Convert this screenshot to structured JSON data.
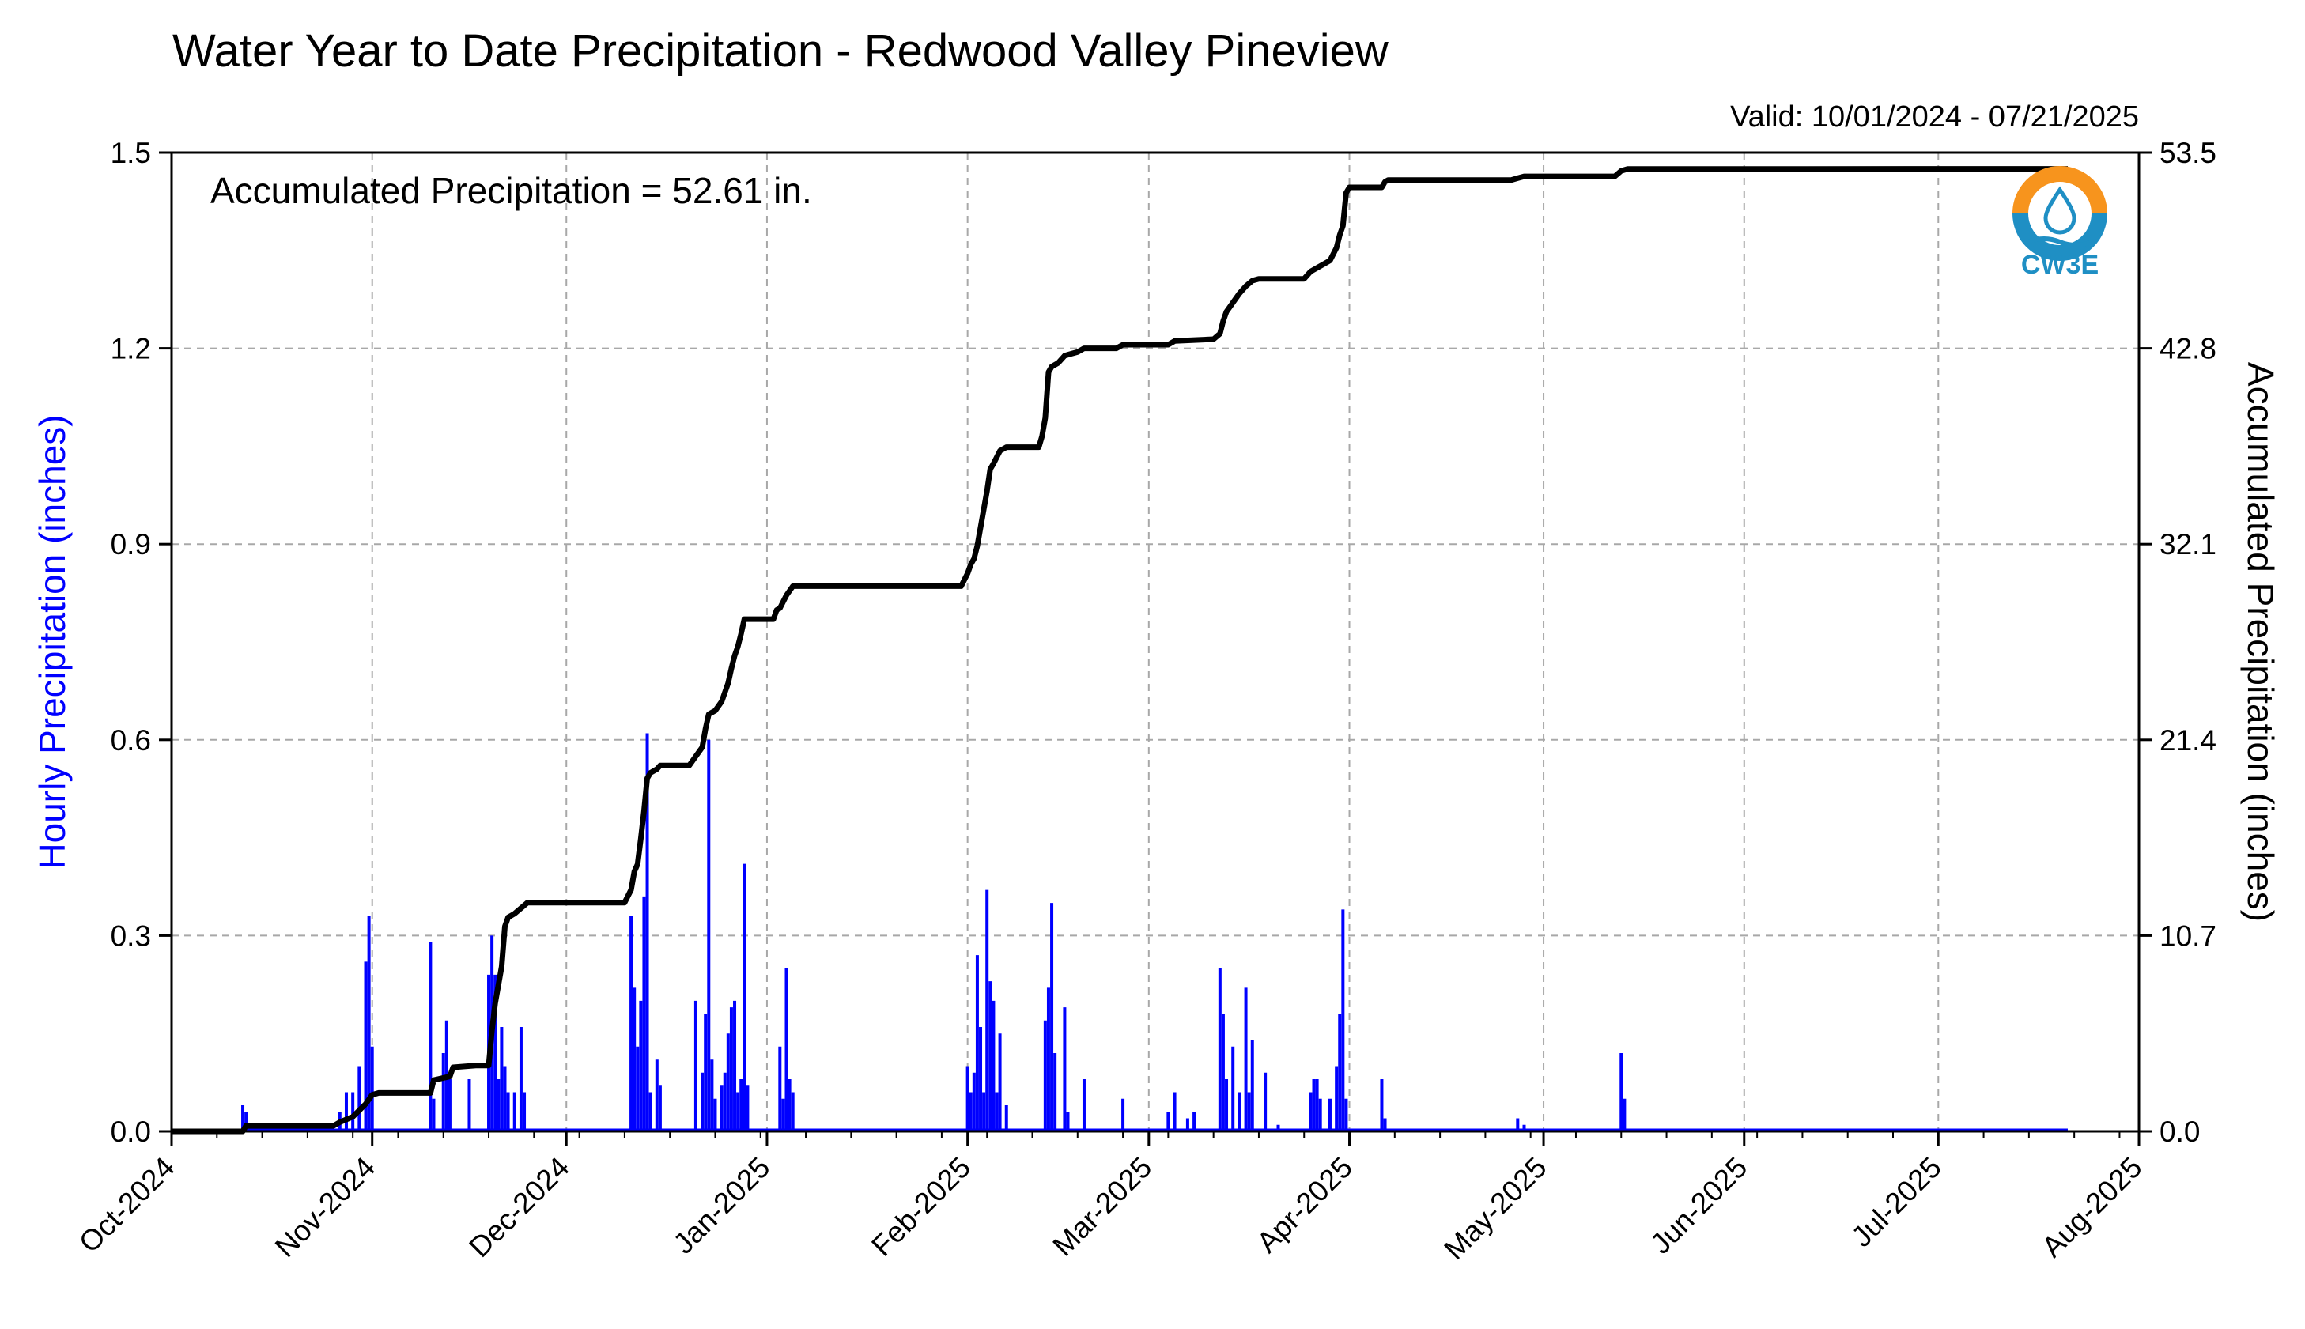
{
  "chart_data": {
    "type": "bar",
    "title": "Water Year to Date Precipitation - Redwood Valley Pineview",
    "valid_range": "Valid: 10/01/2024 - 07/21/2025",
    "annotation": "Accumulated Precipitation = 52.61 in.",
    "logo_text": "CW3E",
    "ylabel_left": "Hourly Precipitation (inches)",
    "ylabel_right": "Accumulated Precipitation (inches)",
    "ylim_left": [
      0,
      1.5
    ],
    "ylim_right": [
      0,
      53.5
    ],
    "yticks_left": [
      "0.0",
      "0.3",
      "0.6",
      "0.9",
      "1.2",
      "1.5"
    ],
    "yticks_right": [
      "0.0",
      "10.7",
      "21.4",
      "32.1",
      "42.8",
      "53.5"
    ],
    "xlim": [
      "2024-10-01",
      "2025-08-01"
    ],
    "xticks": [
      {
        "date": "2024-10-01",
        "label": "Oct-2024"
      },
      {
        "date": "2024-11-01",
        "label": "Nov-2024"
      },
      {
        "date": "2024-12-01",
        "label": "Dec-2024"
      },
      {
        "date": "2025-01-01",
        "label": "Jan-2025"
      },
      {
        "date": "2025-02-01",
        "label": "Feb-2025"
      },
      {
        "date": "2025-03-01",
        "label": "Mar-2025"
      },
      {
        "date": "2025-04-01",
        "label": "Apr-2025"
      },
      {
        "date": "2025-05-01",
        "label": "May-2025"
      },
      {
        "date": "2025-06-01",
        "label": "Jun-2025"
      },
      {
        "date": "2025-07-01",
        "label": "Jul-2025"
      },
      {
        "date": "2025-08-01",
        "label": "Aug-2025"
      }
    ],
    "grid": true,
    "colors": {
      "hourly": "#0000ff",
      "accumulated": "#000000",
      "grid": "#a8a8a8",
      "logo_orange": "#f7941d",
      "logo_blue": "#1f8fc4"
    },
    "series": [
      {
        "name": "Hourly Precipitation (inches)",
        "axis": "left",
        "style": "bar",
        "points": [
          [
            "2024-10-12",
            0.04
          ],
          [
            "2024-10-12T12",
            0.03
          ],
          [
            "2024-10-27",
            0.03
          ],
          [
            "2024-10-28",
            0.06
          ],
          [
            "2024-10-29",
            0.06
          ],
          [
            "2024-10-30",
            0.1
          ],
          [
            "2024-10-31",
            0.26
          ],
          [
            "2024-10-31T12",
            0.33
          ],
          [
            "2024-11-01",
            0.13
          ],
          [
            "2024-11-10",
            0.29
          ],
          [
            "2024-11-10T12",
            0.05
          ],
          [
            "2024-11-12",
            0.12
          ],
          [
            "2024-11-12T12",
            0.17
          ],
          [
            "2024-11-13",
            0.08
          ],
          [
            "2024-11-16",
            0.08
          ],
          [
            "2024-11-19",
            0.24
          ],
          [
            "2024-11-19T12",
            0.3
          ],
          [
            "2024-11-20",
            0.24
          ],
          [
            "2024-11-20T12",
            0.08
          ],
          [
            "2024-11-21",
            0.16
          ],
          [
            "2024-11-21T12",
            0.1
          ],
          [
            "2024-11-22",
            0.06
          ],
          [
            "2024-11-23",
            0.06
          ],
          [
            "2024-11-24",
            0.16
          ],
          [
            "2024-11-24T12",
            0.06
          ],
          [
            "2024-12-11",
            0.33
          ],
          [
            "2024-12-11T12",
            0.22
          ],
          [
            "2024-12-12",
            0.13
          ],
          [
            "2024-12-12T12",
            0.2
          ],
          [
            "2024-12-13",
            0.36
          ],
          [
            "2024-12-13T12",
            0.61
          ],
          [
            "2024-12-14",
            0.06
          ],
          [
            "2024-12-15",
            0.11
          ],
          [
            "2024-12-15T12",
            0.07
          ],
          [
            "2024-12-21",
            0.2
          ],
          [
            "2024-12-22",
            0.09
          ],
          [
            "2024-12-22T12",
            0.18
          ],
          [
            "2024-12-23",
            0.6
          ],
          [
            "2024-12-23T12",
            0.11
          ],
          [
            "2024-12-24",
            0.05
          ],
          [
            "2024-12-25",
            0.07
          ],
          [
            "2024-12-25T12",
            0.09
          ],
          [
            "2024-12-26",
            0.15
          ],
          [
            "2024-12-26T12",
            0.19
          ],
          [
            "2024-12-27",
            0.2
          ],
          [
            "2024-12-27T12",
            0.06
          ],
          [
            "2024-12-28",
            0.08
          ],
          [
            "2024-12-28T12",
            0.41
          ],
          [
            "2024-12-29",
            0.07
          ],
          [
            "2025-01-03",
            0.13
          ],
          [
            "2025-01-03T12",
            0.05
          ],
          [
            "2025-01-04",
            0.25
          ],
          [
            "2025-01-04T12",
            0.08
          ],
          [
            "2025-01-05",
            0.06
          ],
          [
            "2025-02-01",
            0.1
          ],
          [
            "2025-02-01T12",
            0.06
          ],
          [
            "2025-02-02",
            0.09
          ],
          [
            "2025-02-02T12",
            0.27
          ],
          [
            "2025-02-03",
            0.16
          ],
          [
            "2025-02-03T12",
            0.06
          ],
          [
            "2025-02-04",
            0.37
          ],
          [
            "2025-02-04T12",
            0.23
          ],
          [
            "2025-02-05",
            0.2
          ],
          [
            "2025-02-05T12",
            0.06
          ],
          [
            "2025-02-06",
            0.15
          ],
          [
            "2025-02-07",
            0.04
          ],
          [
            "2025-02-13",
            0.17
          ],
          [
            "2025-02-13T12",
            0.22
          ],
          [
            "2025-02-14",
            0.35
          ],
          [
            "2025-02-14T12",
            0.12
          ],
          [
            "2025-02-16",
            0.19
          ],
          [
            "2025-02-16T12",
            0.03
          ],
          [
            "2025-02-19",
            0.08
          ],
          [
            "2025-02-25",
            0.05
          ],
          [
            "2025-03-04",
            0.03
          ],
          [
            "2025-03-05",
            0.06
          ],
          [
            "2025-03-07",
            0.02
          ],
          [
            "2025-03-08",
            0.03
          ],
          [
            "2025-03-12",
            0.25
          ],
          [
            "2025-03-12T12",
            0.18
          ],
          [
            "2025-03-13",
            0.08
          ],
          [
            "2025-03-14",
            0.13
          ],
          [
            "2025-03-15",
            0.06
          ],
          [
            "2025-03-16",
            0.22
          ],
          [
            "2025-03-16T12",
            0.06
          ],
          [
            "2025-03-17",
            0.14
          ],
          [
            "2025-03-19",
            0.09
          ],
          [
            "2025-03-21",
            0.01
          ],
          [
            "2025-03-26",
            0.06
          ],
          [
            "2025-03-26T12",
            0.08
          ],
          [
            "2025-03-27",
            0.08
          ],
          [
            "2025-03-27T12",
            0.05
          ],
          [
            "2025-03-29",
            0.05
          ],
          [
            "2025-03-30",
            0.1
          ],
          [
            "2025-03-30T12",
            0.18
          ],
          [
            "2025-03-31",
            0.34
          ],
          [
            "2025-03-31T12",
            0.05
          ],
          [
            "2025-04-06",
            0.08
          ],
          [
            "2025-04-06T12",
            0.02
          ],
          [
            "2025-04-27",
            0.02
          ],
          [
            "2025-04-28",
            0.01
          ],
          [
            "2025-05-13",
            0.12
          ],
          [
            "2025-05-13T12",
            0.05
          ]
        ]
      },
      {
        "name": "Accumulated Precipitation (inches)",
        "axis": "right",
        "style": "step-line",
        "points": [
          [
            "2024-10-01",
            0.0
          ],
          [
            "2024-10-12",
            0.0
          ],
          [
            "2024-10-12T12",
            0.3
          ],
          [
            "2024-10-26",
            0.3
          ],
          [
            "2024-10-27",
            0.5
          ],
          [
            "2024-10-29",
            0.8
          ],
          [
            "2024-10-31",
            1.5
          ],
          [
            "2024-11-01",
            2.0
          ],
          [
            "2024-11-02",
            2.1
          ],
          [
            "2024-11-10",
            2.1
          ],
          [
            "2024-11-10T12",
            2.8
          ],
          [
            "2024-11-13",
            3.0
          ],
          [
            "2024-11-13T12",
            3.5
          ],
          [
            "2024-11-17",
            3.6
          ],
          [
            "2024-11-19",
            3.6
          ],
          [
            "2024-11-19T12",
            5.5
          ],
          [
            "2024-11-20",
            7.0
          ],
          [
            "2024-11-21",
            9.0
          ],
          [
            "2024-11-21T12",
            11.2
          ],
          [
            "2024-11-22",
            11.7
          ],
          [
            "2024-11-23",
            11.9
          ],
          [
            "2024-11-24",
            12.2
          ],
          [
            "2024-11-25",
            12.5
          ],
          [
            "2024-12-10",
            12.5
          ],
          [
            "2024-12-11",
            13.2
          ],
          [
            "2024-12-11T12",
            14.2
          ],
          [
            "2024-12-12",
            14.6
          ],
          [
            "2024-12-12T12",
            16.0
          ],
          [
            "2024-12-13",
            17.5
          ],
          [
            "2024-12-13T12",
            19.3
          ],
          [
            "2024-12-14",
            19.6
          ],
          [
            "2024-12-15",
            19.8
          ],
          [
            "2024-12-15T12",
            20.0
          ],
          [
            "2024-12-20",
            20.0
          ],
          [
            "2024-12-21",
            20.5
          ],
          [
            "2024-12-22",
            21.0
          ],
          [
            "2024-12-22T12",
            22.0
          ],
          [
            "2024-12-23",
            22.8
          ],
          [
            "2024-12-24",
            23.0
          ],
          [
            "2024-12-25",
            23.5
          ],
          [
            "2024-12-26",
            24.5
          ],
          [
            "2024-12-26T12",
            25.3
          ],
          [
            "2024-12-27",
            26.0
          ],
          [
            "2024-12-27T12",
            26.5
          ],
          [
            "2024-12-28",
            27.2
          ],
          [
            "2024-12-28T12",
            28.0
          ],
          [
            "2024-12-29",
            28.0
          ],
          [
            "2025-01-02",
            28.0
          ],
          [
            "2025-01-02T12",
            28.5
          ],
          [
            "2025-01-03",
            28.6
          ],
          [
            "2025-01-04",
            29.3
          ],
          [
            "2025-01-05",
            29.8
          ],
          [
            "2025-01-31",
            29.8
          ],
          [
            "2025-02-01",
            30.5
          ],
          [
            "2025-02-01T12",
            31.0
          ],
          [
            "2025-02-02",
            31.3
          ],
          [
            "2025-02-02T12",
            32.0
          ],
          [
            "2025-02-03",
            33.0
          ],
          [
            "2025-02-03T12",
            34.0
          ],
          [
            "2025-02-04",
            35.0
          ],
          [
            "2025-02-04T12",
            36.2
          ],
          [
            "2025-02-05",
            36.5
          ],
          [
            "2025-02-06",
            37.2
          ],
          [
            "2025-02-07",
            37.4
          ],
          [
            "2025-02-12",
            37.4
          ],
          [
            "2025-02-12T12",
            38.0
          ],
          [
            "2025-02-13",
            39.0
          ],
          [
            "2025-02-13T12",
            41.5
          ],
          [
            "2025-02-14",
            41.8
          ],
          [
            "2025-02-15",
            42.0
          ],
          [
            "2025-02-16",
            42.4
          ],
          [
            "2025-02-17",
            42.5
          ],
          [
            "2025-02-18",
            42.6
          ],
          [
            "2025-02-19",
            42.8
          ],
          [
            "2025-02-24",
            42.8
          ],
          [
            "2025-02-25",
            43.0
          ],
          [
            "2025-03-03",
            43.0
          ],
          [
            "2025-03-04",
            43.0
          ],
          [
            "2025-03-05",
            43.2
          ],
          [
            "2025-03-11",
            43.3
          ],
          [
            "2025-03-12",
            43.6
          ],
          [
            "2025-03-12T12",
            44.3
          ],
          [
            "2025-03-13",
            44.8
          ],
          [
            "2025-03-14",
            45.3
          ],
          [
            "2025-03-15",
            45.8
          ],
          [
            "2025-03-16",
            46.2
          ],
          [
            "2025-03-17",
            46.5
          ],
          [
            "2025-03-18",
            46.6
          ],
          [
            "2025-03-25",
            46.6
          ],
          [
            "2025-03-26",
            47.0
          ],
          [
            "2025-03-27",
            47.2
          ],
          [
            "2025-03-28",
            47.4
          ],
          [
            "2025-03-29",
            47.6
          ],
          [
            "2025-03-30",
            48.3
          ],
          [
            "2025-03-30T12",
            49.0
          ],
          [
            "2025-03-31",
            49.5
          ],
          [
            "2025-03-31T12",
            51.3
          ],
          [
            "2025-04-01",
            51.6
          ],
          [
            "2025-04-06",
            51.6
          ],
          [
            "2025-04-06T12",
            51.9
          ],
          [
            "2025-04-07",
            52.0
          ],
          [
            "2025-04-26",
            52.0
          ],
          [
            "2025-04-27",
            52.1
          ],
          [
            "2025-04-28",
            52.2
          ],
          [
            "2025-05-12",
            52.2
          ],
          [
            "2025-05-13",
            52.5
          ],
          [
            "2025-05-14",
            52.6
          ],
          [
            "2025-07-21",
            52.61
          ]
        ]
      }
    ]
  }
}
